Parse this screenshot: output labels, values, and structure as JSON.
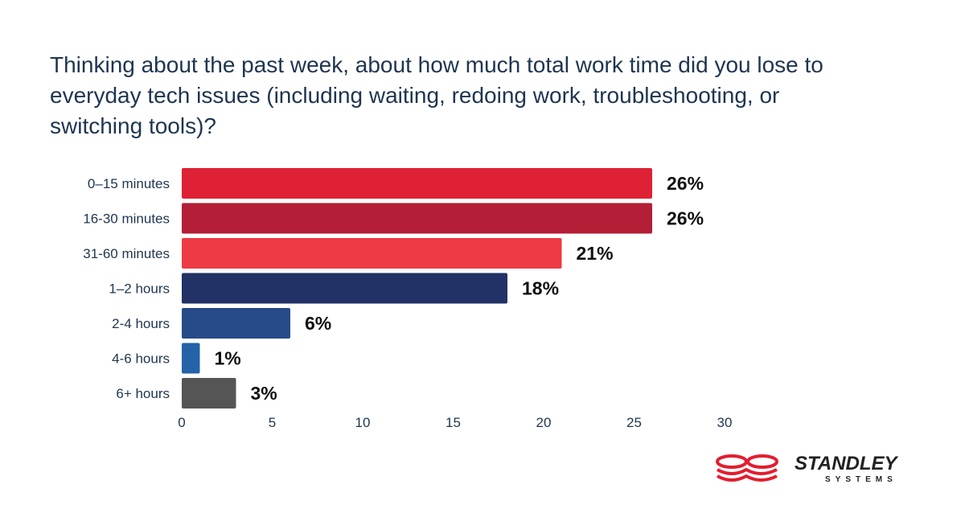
{
  "title": "Thinking about the past week, about how much total work time did you lose to everyday tech issues (including waiting, redoing work, troubleshooting, or switching tools)?",
  "chart_data": {
    "type": "bar",
    "orientation": "horizontal",
    "title": "Thinking about the past week, about how much total work time did you lose to everyday tech issues (including waiting, redoing work, troubleshooting, or switching tools)?",
    "categories": [
      "0–15 minutes",
      "16-30 minutes",
      "31-60 minutes",
      "1–2 hours",
      "2-4 hours",
      "4-6 hours",
      "6+ hours"
    ],
    "values": [
      26,
      26,
      21,
      18,
      6,
      1,
      3
    ],
    "data_labels": [
      "26%",
      "26%",
      "21%",
      "18%",
      "6%",
      "1%",
      "3%"
    ],
    "colors": [
      "#de2135",
      "#b41e36",
      "#ee3a44",
      "#223266",
      "#274a89",
      "#2463a8",
      "#555555"
    ],
    "xlim": [
      0,
      30
    ],
    "xticks": [
      0,
      5,
      10,
      15,
      20,
      25,
      30
    ],
    "xtick_labels": [
      "0",
      "5",
      "10",
      "15",
      "20",
      "25",
      "30"
    ],
    "xlabel": "",
    "ylabel": "",
    "grid": false
  },
  "logo": {
    "name": "STANDLEY",
    "sub": "SYSTEMS"
  }
}
